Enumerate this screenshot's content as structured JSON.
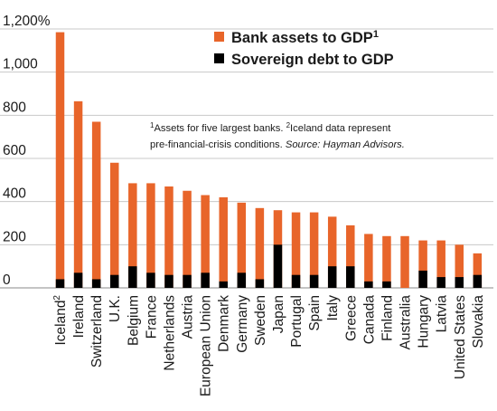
{
  "chart_data": {
    "type": "bar",
    "y_unit_suffix": "%",
    "ylim": [
      0,
      1200
    ],
    "yticks": [
      0,
      200,
      400,
      600,
      800,
      1000,
      1200
    ],
    "ytick_labels": [
      "0",
      "200",
      "400",
      "600",
      "800",
      "1,000",
      "1,200%"
    ],
    "grid": true,
    "categories": [
      "Iceland",
      "Ireland",
      "Switzerland",
      "U.K.",
      "Belgium",
      "France",
      "Netherlands",
      "Austria",
      "European Union",
      "Denmark",
      "Germany",
      "Sweden",
      "Japan",
      "Portugal",
      "Spain",
      "Italy",
      "Greece",
      "Canada",
      "Finland",
      "Australia",
      "Hungary",
      "Latvia",
      "United States",
      "Slovakia"
    ],
    "category_superscripts": {
      "Iceland": "2"
    },
    "series": [
      {
        "name": "Bank assets to GDP",
        "name_superscript": "1",
        "color": "#e8652a",
        "values": [
          1185,
          865,
          770,
          580,
          485,
          485,
          470,
          450,
          430,
          420,
          395,
          370,
          360,
          350,
          350,
          330,
          290,
          250,
          240,
          240,
          220,
          220,
          200,
          160
        ]
      },
      {
        "name": "Sovereign debt to GDP",
        "color": "#000000",
        "values": [
          40,
          70,
          40,
          60,
          100,
          70,
          60,
          60,
          70,
          30,
          70,
          40,
          200,
          60,
          60,
          100,
          100,
          30,
          30,
          0,
          80,
          50,
          50,
          60
        ]
      }
    ],
    "legend": {
      "position": "top-right"
    },
    "note": {
      "line1_parts": [
        {
          "sup": "1"
        },
        {
          "text": "Assets for five largest banks. "
        },
        {
          "sup": "2"
        },
        {
          "text": "Iceland data represent"
        }
      ],
      "line2_parts": [
        {
          "text": "pre-financial-crisis conditions. "
        },
        {
          "text": "Source: Hayman Advisors.",
          "italic": true
        }
      ]
    }
  }
}
